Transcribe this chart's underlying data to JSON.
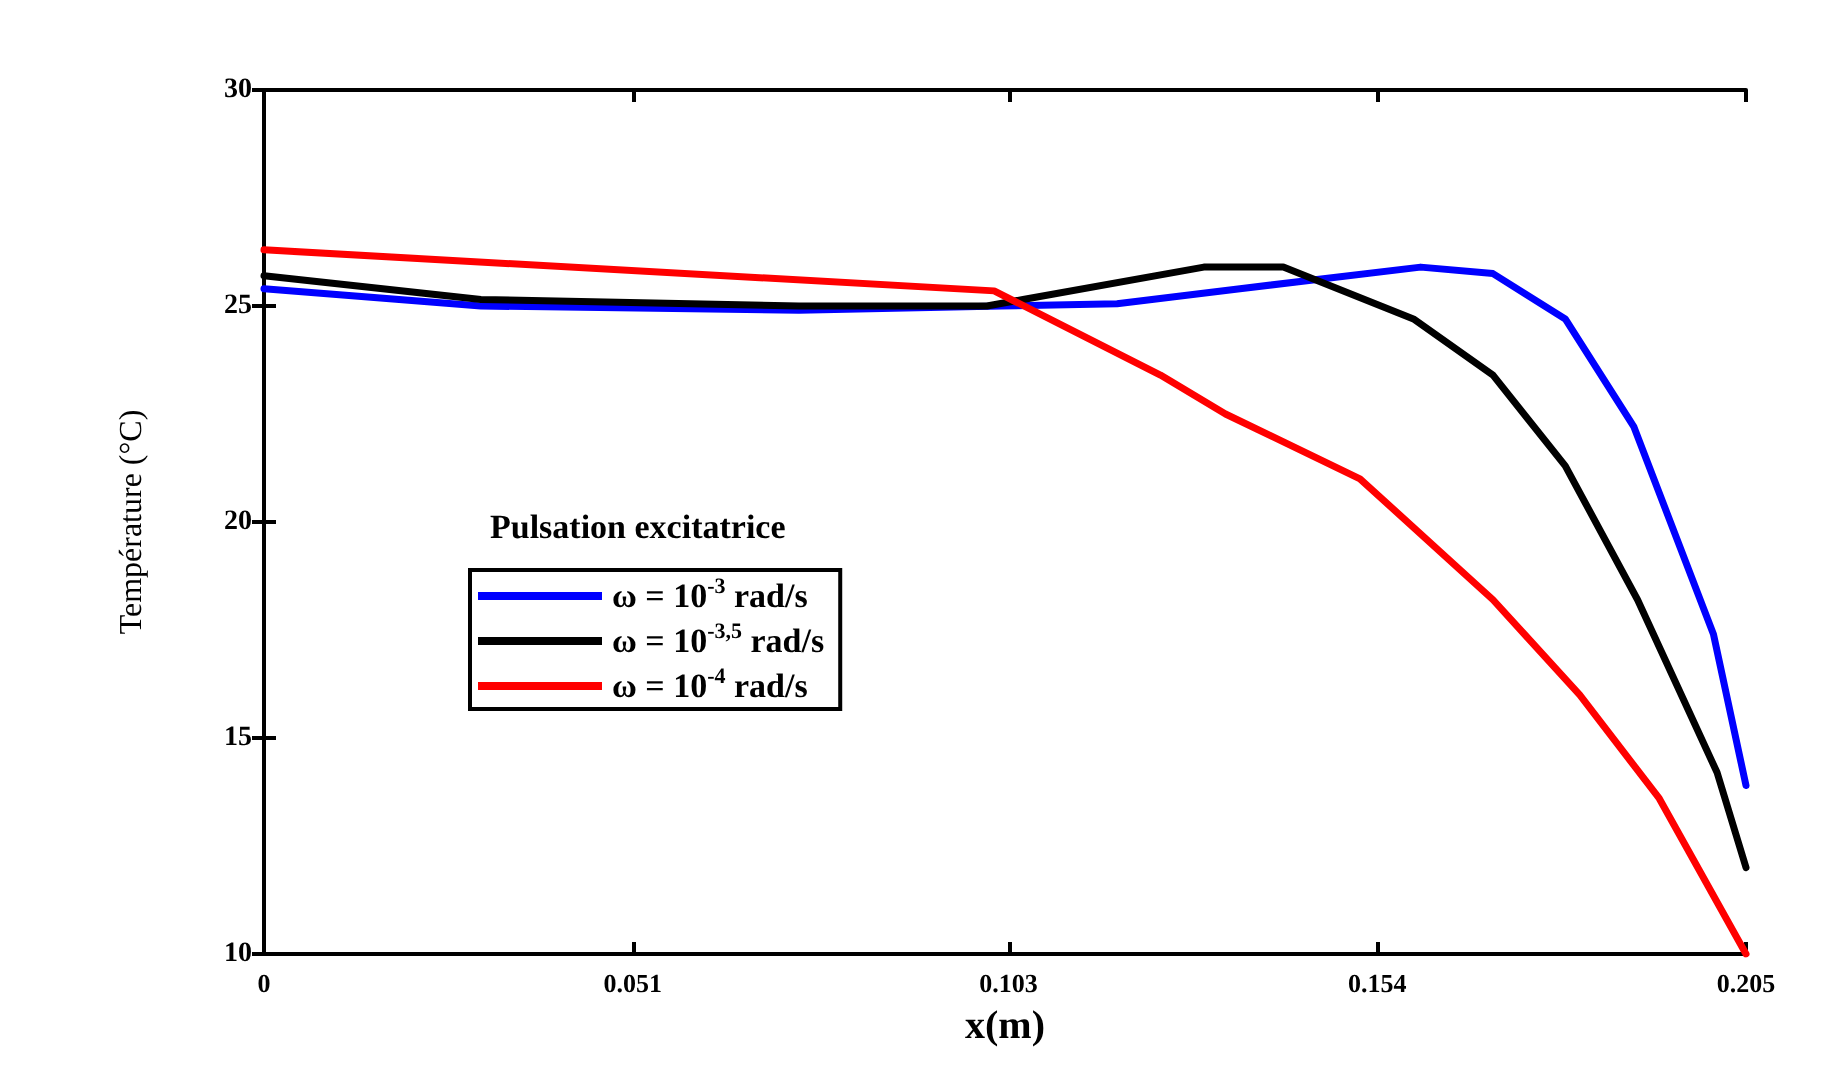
{
  "chart_data": {
    "type": "line",
    "xlabel": "x(m)",
    "ylabel": "Température (°C)",
    "legend_title": "Pulsation excitatrice",
    "xlim": [
      0,
      0.205
    ],
    "xticks": [
      0,
      0.051,
      0.103,
      0.154,
      0.205
    ],
    "ylim": [
      10,
      30
    ],
    "yticks": [
      10,
      15,
      20,
      25,
      30
    ],
    "grid": false,
    "legend": "center left",
    "marker": "none",
    "line_style": "solid",
    "series": [
      {
        "name": "ω = 10$^{-3}$ rad/s",
        "color": "#0000ff",
        "x": [
          0,
          0.03,
          0.074,
          0.102,
          0.118,
          0.135,
          0.16,
          0.17,
          0.18,
          0.1895,
          0.2005,
          0.205
        ],
        "values": [
          25.4,
          25.0,
          24.9,
          25.0,
          25.05,
          25.4,
          25.9,
          25.75,
          24.7,
          22.2,
          17.4,
          13.9
        ]
      },
      {
        "name": "ω = 10$^{-3,5}$ rad/s",
        "color": "#000000",
        "x": [
          0,
          0.03,
          0.074,
          0.1,
          0.105,
          0.13,
          0.141,
          0.159,
          0.17,
          0.18,
          0.19,
          0.201,
          0.205
        ],
        "values": [
          25.7,
          25.15,
          25.0,
          25.0,
          25.15,
          25.9,
          25.9,
          24.7,
          23.4,
          21.3,
          18.2,
          14.2,
          12.0
        ]
      },
      {
        "name": "ω = 10$^{-4}$ rad/s",
        "color": "#ff0000",
        "x": [
          0,
          0.101,
          0.124,
          0.133,
          0.1516,
          0.17,
          0.182,
          0.193,
          0.205
        ],
        "values": [
          26.3,
          25.35,
          23.4,
          22.5,
          21.0,
          18.2,
          16.0,
          13.6,
          10.0
        ]
      }
    ]
  }
}
